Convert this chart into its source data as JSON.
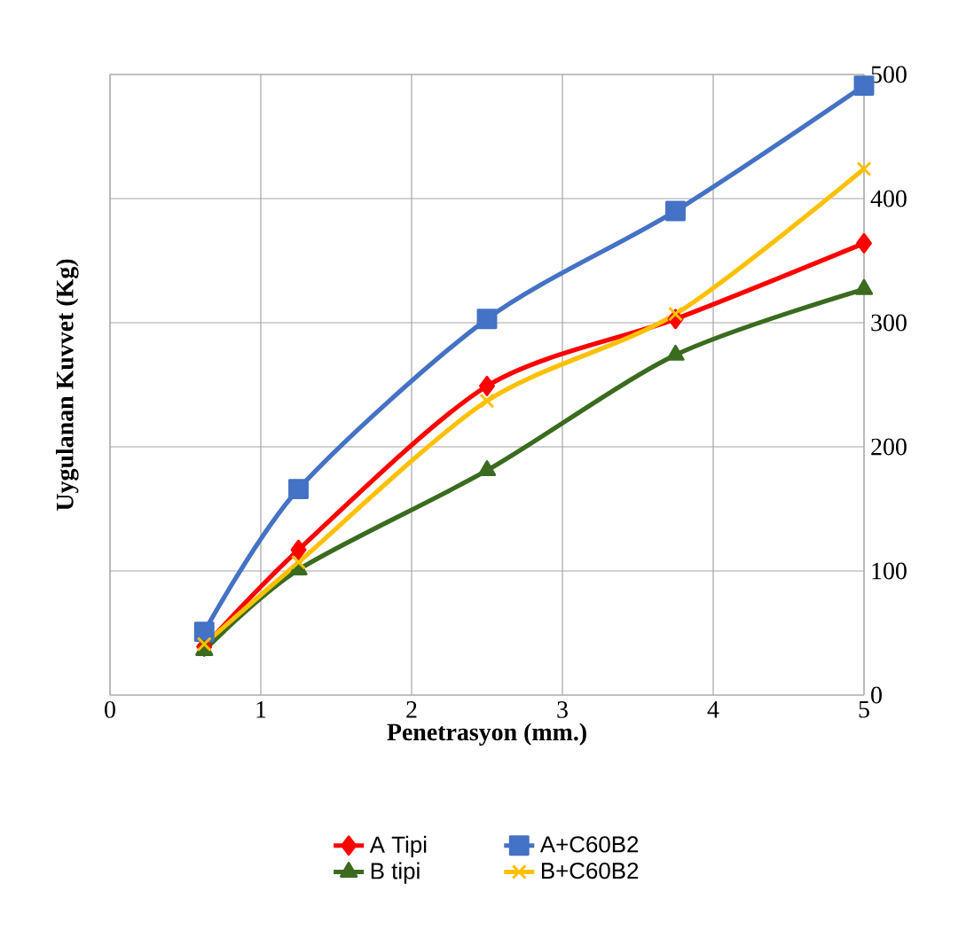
{
  "chart_data": {
    "type": "line",
    "xlabel": "Penetrasyon (mm.)",
    "ylabel": "Uygulanan Kuvvet (Kg)",
    "x": [
      0.625,
      1.25,
      2.5,
      3.75,
      5
    ],
    "series": [
      {
        "name": "A Tipi",
        "color": "#ff0000",
        "marker": "diamond",
        "values": [
          39,
          117,
          249,
          303,
          364
        ]
      },
      {
        "name": "A+C60B2",
        "color": "#4472c4",
        "marker": "square",
        "values": [
          51,
          166,
          303,
          390,
          491
        ]
      },
      {
        "name": "B tipi",
        "color": "#3a6b1f",
        "marker": "triangle",
        "values": [
          36,
          101,
          181,
          274,
          327
        ]
      },
      {
        "name": "B+C60B2",
        "color": "#ffc000",
        "marker": "cross",
        "values": [
          41,
          107,
          237,
          307,
          424
        ]
      }
    ],
    "xlim": [
      0,
      5
    ],
    "ylim": [
      0,
      500
    ],
    "xticks": [
      0,
      1,
      2,
      3,
      4,
      5
    ],
    "yticks": [
      0,
      100,
      200,
      300,
      400,
      500
    ],
    "grid": true,
    "legend": "bottom",
    "line_style": "solid"
  }
}
